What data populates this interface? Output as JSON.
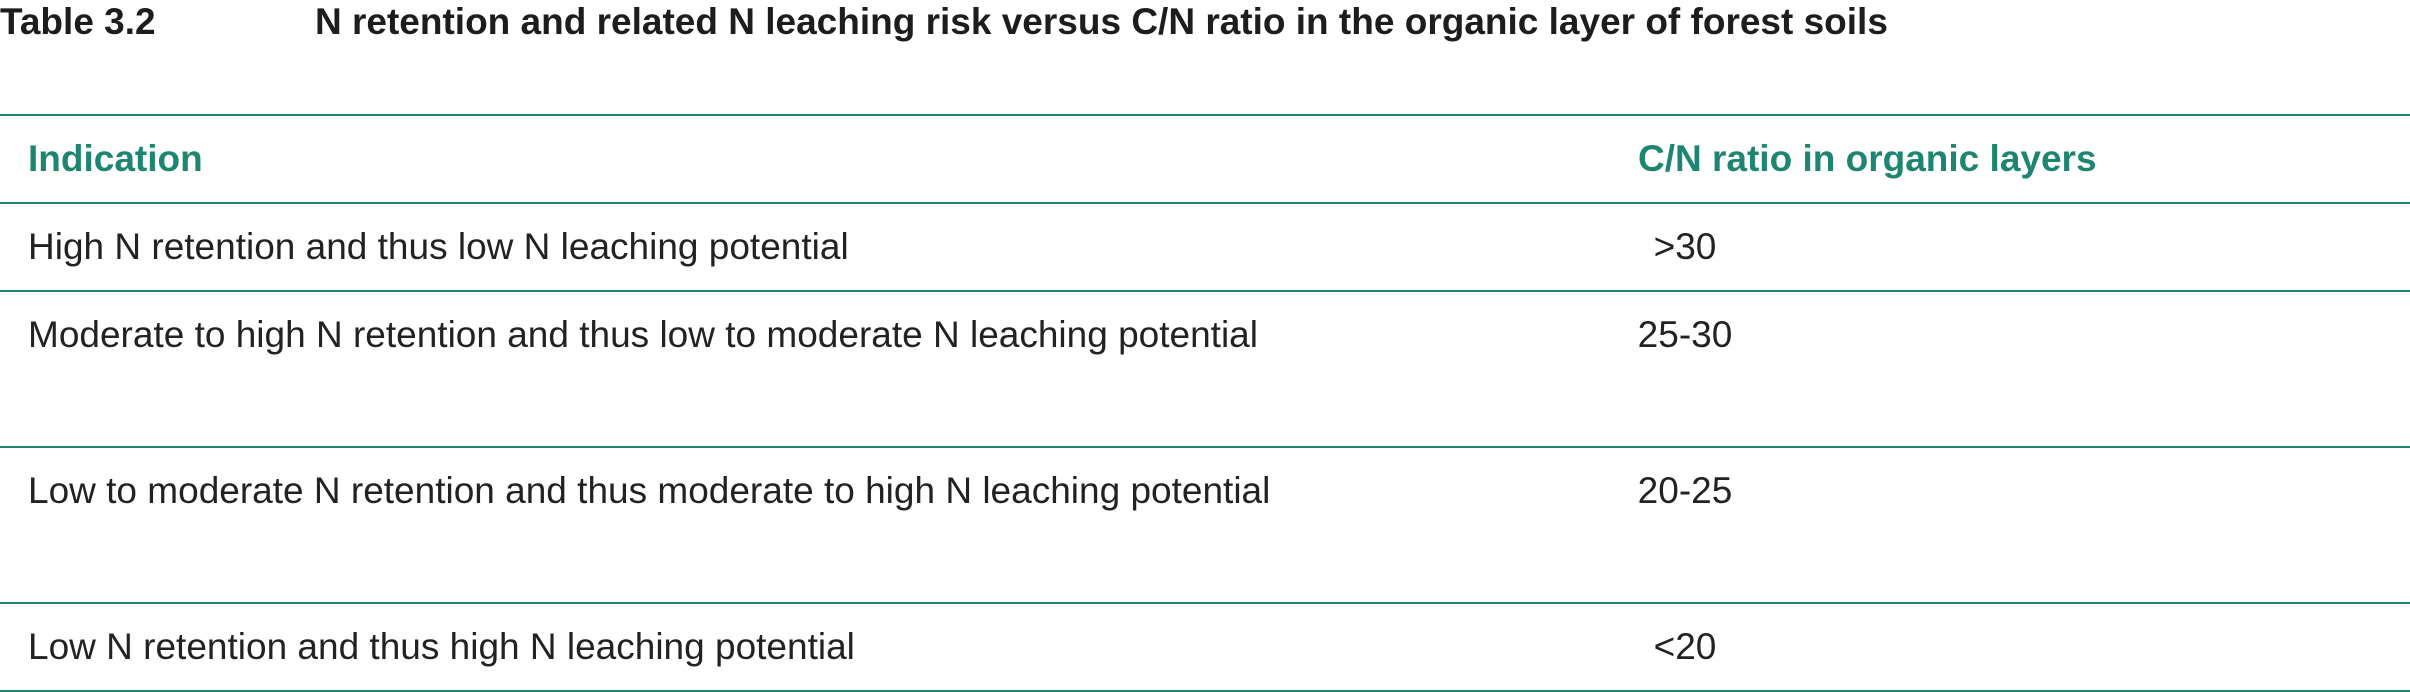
{
  "caption": {
    "label": "Table 3.2",
    "title": "N retention and related N leaching risk versus C/N ratio in the organic layer of forest soils"
  },
  "table": {
    "headers": {
      "indication": "Indication",
      "cn_ratio": "C/N ratio in organic layers"
    },
    "rows": [
      {
        "indication": "High N retention and thus low N leaching potential",
        "cn_ratio": ">30"
      },
      {
        "indication": "Moderate to high N retention and thus low to moderate N leaching potential",
        "cn_ratio": "25-30"
      },
      {
        "indication": "Low to moderate N retention and thus moderate to high N leaching potential",
        "cn_ratio": "20-25"
      },
      {
        "indication": "Low N retention and thus high N leaching potential",
        "cn_ratio": "<20"
      }
    ]
  },
  "colors": {
    "accent": "#1e8571",
    "text": "#222222"
  }
}
